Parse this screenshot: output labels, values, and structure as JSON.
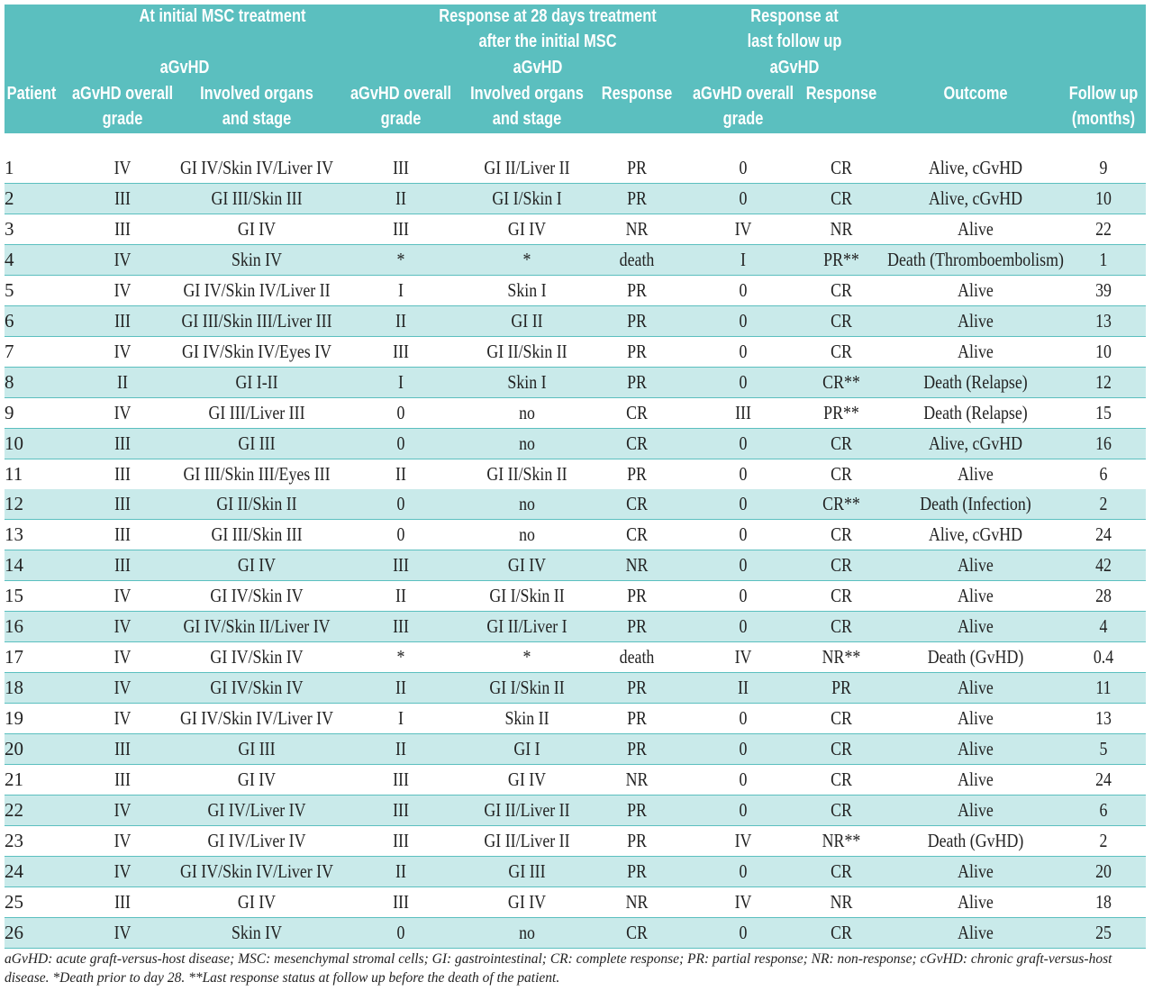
{
  "header": {
    "groups": [
      "At initial MSC treatment",
      "Response at 28 days  treatment",
      "after the initial MSC",
      "Response at",
      "last follow up"
    ],
    "agvhd": [
      "aGvHD",
      "aGvHD",
      "aGvHD"
    ],
    "columns": [
      [
        "Patient"
      ],
      [
        "aGvHD overall",
        "grade"
      ],
      [
        "Involved organs",
        "and stage"
      ],
      [
        "aGvHD overall",
        "grade"
      ],
      [
        "Involved organs",
        "and stage"
      ],
      [
        "Response"
      ],
      [
        "aGvHD overall",
        "grade"
      ],
      [
        "Response"
      ],
      [
        "Outcome"
      ],
      [
        "Follow up",
        "(months)"
      ]
    ]
  },
  "table": {
    "rows": [
      [
        "1",
        "IV",
        "GI IV/Skin IV/Liver IV",
        "III",
        "GI II/Liver II",
        "PR",
        "0",
        "CR",
        "Alive, cGvHD",
        "9"
      ],
      [
        "2",
        "III",
        "GI III/Skin III",
        "II",
        "GI I/Skin I",
        "PR",
        "0",
        "CR",
        "Alive, cGvHD",
        "10"
      ],
      [
        "3",
        "III",
        "GI IV",
        "III",
        "GI IV",
        "NR",
        "IV",
        "NR",
        "Alive",
        "22"
      ],
      [
        "4",
        "IV",
        "Skin IV",
        "*",
        "*",
        "death",
        "I",
        "PR**",
        "Death (Thromboembolism)",
        "1"
      ],
      [
        "5",
        "IV",
        "GI IV/Skin IV/Liver II",
        "I",
        "Skin I",
        "PR",
        "0",
        "CR",
        "Alive",
        "39"
      ],
      [
        "6",
        "III",
        "GI III/Skin III/Liver III",
        "II",
        "GI II",
        "PR",
        "0",
        "CR",
        "Alive",
        "13"
      ],
      [
        "7",
        "IV",
        "GI IV/Skin IV/Eyes IV",
        "III",
        "GI II/Skin II",
        "PR",
        "0",
        "CR",
        "Alive",
        "10"
      ],
      [
        "8",
        "II",
        "GI I-II",
        "I",
        "Skin I",
        "PR",
        "0",
        "CR**",
        "Death (Relapse)",
        "12"
      ],
      [
        "9",
        "IV",
        "GI III/Liver III",
        "0",
        "no",
        "CR",
        "III",
        "PR**",
        "Death (Relapse)",
        "15"
      ],
      [
        "10",
        "III",
        "GI III",
        "0",
        "no",
        "CR",
        "0",
        "CR",
        "Alive, cGvHD",
        "16"
      ],
      [
        "11",
        "III",
        "GI III/Skin III/Eyes III",
        "II",
        "GI II/Skin II",
        "PR",
        "0",
        "CR",
        "Alive",
        "6"
      ],
      [
        "12",
        "III",
        "GI II/Skin II",
        "0",
        "no",
        "CR",
        "0",
        "CR**",
        "Death (Infection)",
        "2"
      ],
      [
        "13",
        "III",
        "GI III/Skin III",
        "0",
        "no",
        "CR",
        "0",
        "CR",
        "Alive, cGvHD",
        "24"
      ],
      [
        "14",
        "III",
        "GI IV",
        "III",
        "GI IV",
        "NR",
        "0",
        "CR",
        "Alive",
        "42"
      ],
      [
        "15",
        "IV",
        "GI IV/Skin IV",
        "II",
        "GI I/Skin II",
        "PR",
        "0",
        "CR",
        "Alive",
        "28"
      ],
      [
        "16",
        "IV",
        "GI IV/Skin II/Liver IV",
        "III",
        "GI II/Liver I",
        "PR",
        "0",
        "CR",
        "Alive",
        "4"
      ],
      [
        "17",
        "IV",
        "GI IV/Skin IV",
        "*",
        "*",
        "death",
        "IV",
        "NR**",
        "Death (GvHD)",
        "0.4"
      ],
      [
        "18",
        "IV",
        "GI IV/Skin IV",
        "II",
        "GI I/Skin II",
        "PR",
        "II",
        "PR",
        "Alive",
        "11"
      ],
      [
        "19",
        "IV",
        "GI IV/Skin IV/Liver IV",
        "I",
        "Skin II",
        "PR",
        "0",
        "CR",
        "Alive",
        "13"
      ],
      [
        "20",
        "III",
        "GI III",
        "II",
        "GI I",
        "PR",
        "0",
        "CR",
        "Alive",
        "5"
      ],
      [
        "21",
        "III",
        "GI IV",
        "III",
        "GI IV",
        "NR",
        "0",
        "CR",
        "Alive",
        "24"
      ],
      [
        "22",
        "IV",
        "GI IV/Liver IV",
        "III",
        "GI II/Liver II",
        "PR",
        "0",
        "CR",
        "Alive",
        "6"
      ],
      [
        "23",
        "IV",
        "GI IV/Liver IV",
        "III",
        "GI II/Liver II",
        "PR",
        "IV",
        "NR**",
        "Death (GvHD)",
        "2"
      ],
      [
        "24",
        "IV",
        "GI IV/Skin IV/Liver IV",
        "II",
        "GI III",
        "PR",
        "0",
        "CR",
        "Alive",
        "20"
      ],
      [
        "25",
        "III",
        "GI IV",
        "III",
        "GI IV",
        "NR",
        "IV",
        "NR",
        "Alive",
        "18"
      ],
      [
        "26",
        "IV",
        "Skin IV",
        "0",
        "no",
        "CR",
        "0",
        "CR",
        "Alive",
        "25"
      ]
    ]
  },
  "footnote": "aGvHD: acute graft-versus-host disease; MSC: mesenchymal stromal cells; GI: gastrointestinal; CR: complete response; PR: partial response; NR: non-response; cGvHD: chronic graft-versus-host disease. *Death prior to day 28. **Last response status at follow up before the death of the patient."
}
